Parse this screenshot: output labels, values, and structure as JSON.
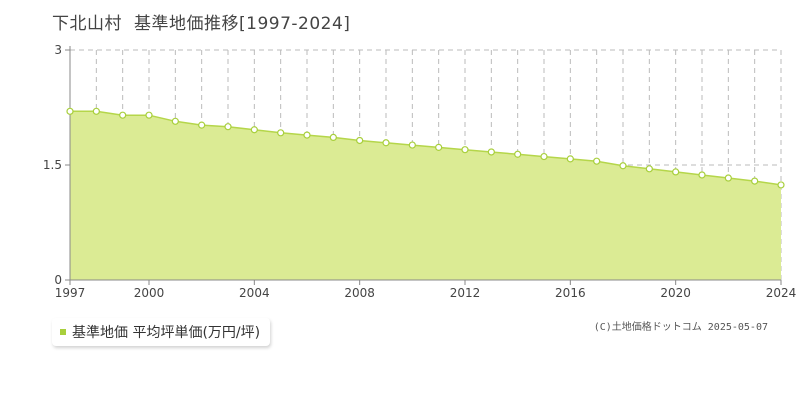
{
  "header": {
    "area": "下北山村",
    "title": "基準地価推移[1997-2024]"
  },
  "legend": {
    "label": "基準地価 平均坪単価(万円/坪)"
  },
  "copyright": "(C)土地価格ドットコム 2025-05-07",
  "colors": {
    "area_fill": "#dbeb94",
    "line": "#b5d64a",
    "marker_fill": "#ffffff",
    "marker_stroke": "#a8cf3c",
    "grid": "#bbbbbb"
  },
  "chart_data": {
    "type": "area",
    "title": "",
    "xlabel": "",
    "ylabel": "",
    "x": [
      1997,
      1998,
      1999,
      2000,
      2001,
      2002,
      2003,
      2004,
      2005,
      2006,
      2007,
      2008,
      2009,
      2010,
      2011,
      2012,
      2013,
      2014,
      2015,
      2016,
      2017,
      2018,
      2019,
      2020,
      2021,
      2022,
      2023,
      2024
    ],
    "series": [
      {
        "values": [
          2.2,
          2.2,
          2.15,
          2.15,
          2.07,
          2.02,
          2.0,
          1.96,
          1.92,
          1.89,
          1.86,
          1.82,
          1.79,
          1.76,
          1.73,
          1.7,
          1.67,
          1.64,
          1.61,
          1.58,
          1.55,
          1.49,
          1.45,
          1.41,
          1.37,
          1.33,
          1.29,
          1.24
        ]
      }
    ],
    "xlim": [
      1997,
      2024
    ],
    "ylim": [
      0,
      3
    ],
    "xticks": [
      "1997",
      "2000",
      "2004",
      "2008",
      "2012",
      "2016",
      "2020",
      "2024"
    ],
    "yticks": [
      "0",
      "1.5",
      "3"
    ],
    "grid": true,
    "legend_position": "bottom-left"
  }
}
